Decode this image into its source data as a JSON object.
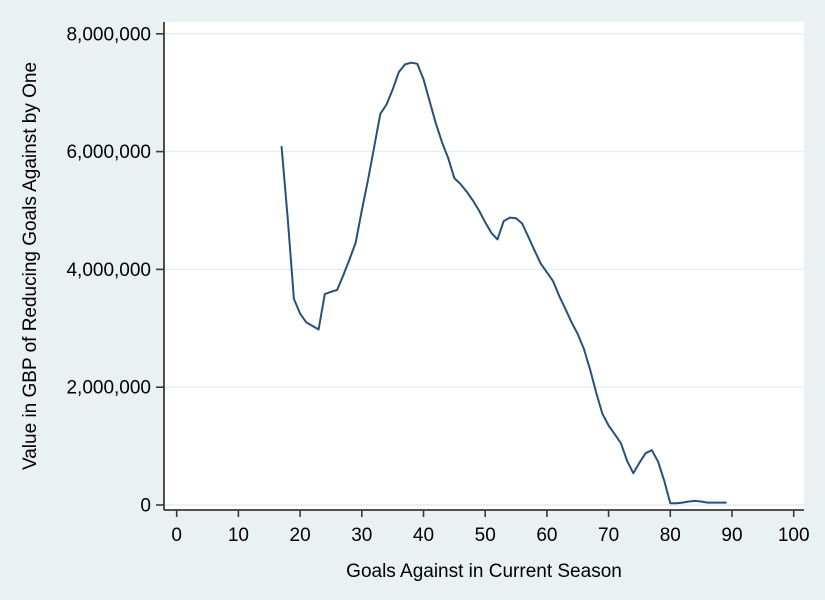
{
  "colors": {
    "page_background": "#EAF1F3",
    "plot_background": "#FFFFFF",
    "line": "#27517A",
    "grid": "#E3EDF2",
    "axis": "#3A3A3A",
    "text": "#000000"
  },
  "chart_data": {
    "type": "line",
    "title": "",
    "xlabel": "Goals Against in Current Season",
    "ylabel": "Value in GBP of Reducing Goals Against by One",
    "xlim": [
      0,
      100
    ],
    "ylim": [
      0,
      8000000
    ],
    "grid": true,
    "legend": false,
    "xticks": [
      0,
      10,
      20,
      30,
      40,
      50,
      60,
      70,
      80,
      90,
      100
    ],
    "xtick_labels": [
      "0",
      "10",
      "20",
      "30",
      "40",
      "50",
      "60",
      "70",
      "80",
      "90",
      "100"
    ],
    "yticks": [
      0,
      2000000,
      4000000,
      6000000,
      8000000
    ],
    "ytick_labels": [
      "0",
      "2,000,000",
      "4,000,000",
      "6,000,000",
      "8,000,000"
    ],
    "series": [
      {
        "name": "value-of-reducing-goals-against",
        "x": [
          17,
          18,
          19,
          20,
          21,
          22,
          23,
          24,
          25,
          26,
          27,
          28,
          29,
          30,
          31,
          32,
          33,
          34,
          35,
          36,
          37,
          38,
          39,
          40,
          41,
          42,
          43,
          44,
          45,
          46,
          47,
          48,
          49,
          50,
          51,
          52,
          53,
          54,
          55,
          56,
          57,
          58,
          59,
          60,
          61,
          62,
          63,
          64,
          65,
          66,
          67,
          68,
          69,
          70,
          71,
          72,
          73,
          74,
          75,
          76,
          77,
          78,
          79,
          80,
          81,
          82,
          83,
          84,
          85,
          86,
          87,
          88,
          89
        ],
        "y": [
          6080000,
          4850000,
          3500000,
          3250000,
          3100000,
          3040000,
          2980000,
          3580000,
          3620000,
          3650000,
          3900000,
          4170000,
          4450000,
          5000000,
          5520000,
          6070000,
          6640000,
          6800000,
          7050000,
          7350000,
          7480000,
          7510000,
          7490000,
          7230000,
          6850000,
          6480000,
          6160000,
          5890000,
          5550000,
          5450000,
          5320000,
          5170000,
          5000000,
          4800000,
          4620000,
          4510000,
          4820000,
          4880000,
          4870000,
          4780000,
          4550000,
          4320000,
          4100000,
          3950000,
          3800000,
          3550000,
          3330000,
          3100000,
          2900000,
          2650000,
          2300000,
          1900000,
          1550000,
          1350000,
          1200000,
          1050000,
          750000,
          540000,
          720000,
          880000,
          930000,
          740000,
          420000,
          30000,
          30000,
          40000,
          60000,
          70000,
          60000,
          40000,
          40000,
          40000,
          40000
        ]
      }
    ]
  }
}
